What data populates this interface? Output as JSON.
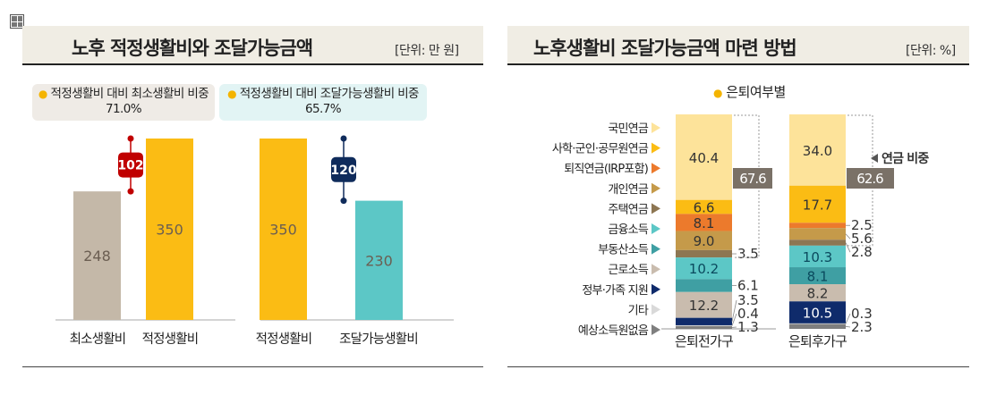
{
  "left": {
    "title": "노후 적정생활비와 조달가능금액",
    "unit": "[단위: 만 원]",
    "box1": {
      "label": "적정생활비 대비 최소생활비 비중",
      "value": "71.0%"
    },
    "box2": {
      "label": "적정생활비 대비 조달가능생활비 비중",
      "value": "65.7%"
    }
  },
  "right": {
    "title": "노후생활비 조달가능금액 마련 방법",
    "unit": "[단위: %]",
    "legend_title": "은퇴여부별",
    "pension_label": "연금 비중"
  },
  "chart_data": [
    {
      "type": "bar",
      "categories": [
        "최소생활비",
        "적정생활비",
        "적정생활비",
        "조달가능생활비"
      ],
      "values": [
        248,
        350,
        350,
        230
      ],
      "value_labels": [
        "248",
        "350",
        "350",
        "230"
      ],
      "colors": [
        "#c4b8a8",
        "#fbbc14",
        "#fbbc14",
        "#5cc7c6"
      ],
      "differences": [
        {
          "label": "102",
          "between": [
            0,
            1
          ],
          "color": "#c00000"
        },
        {
          "label": "120",
          "between": [
            2,
            3
          ],
          "color": "#0f2b5b"
        }
      ]
    },
    {
      "type": "stacked-bar",
      "categories": [
        "은퇴전가구",
        "은퇴후가구"
      ],
      "series": [
        {
          "name": "국민연금",
          "color": "#fde39a",
          "values": [
            40.4,
            34.0
          ]
        },
        {
          "name": "사학·군인·공무원연금",
          "color": "#fbbc14",
          "values": [
            6.6,
            17.7
          ]
        },
        {
          "name": "퇴직연금(IRP포함)",
          "color": "#ec7a2c",
          "values": [
            8.1,
            2.5
          ]
        },
        {
          "name": "개인연금",
          "color": "#c59a4a",
          "values": [
            9.0,
            5.6
          ]
        },
        {
          "name": "주택연금",
          "color": "#8d7652",
          "values": [
            3.5,
            2.8
          ]
        },
        {
          "name": "금융소득",
          "color": "#5cc7c6",
          "values": [
            10.2,
            10.3
          ]
        },
        {
          "name": "부동산소득",
          "color": "#3f9fa3",
          "values": [
            6.1,
            8.1
          ]
        },
        {
          "name": "근로소득",
          "color": "#c9bcae",
          "values": [
            12.2,
            8.2
          ]
        },
        {
          "name": "정부·가족 지원",
          "color": "#0f2b6b",
          "values": [
            3.5,
            10.5
          ]
        },
        {
          "name": "기타",
          "color": "#d9d9d9",
          "values": [
            0.4,
            0.3
          ]
        },
        {
          "name": "예상소득원없음",
          "color": "#7f7f7f",
          "values": [
            1.3,
            2.3
          ]
        }
      ],
      "pension_share": [
        "67.6",
        "62.6"
      ]
    }
  ]
}
